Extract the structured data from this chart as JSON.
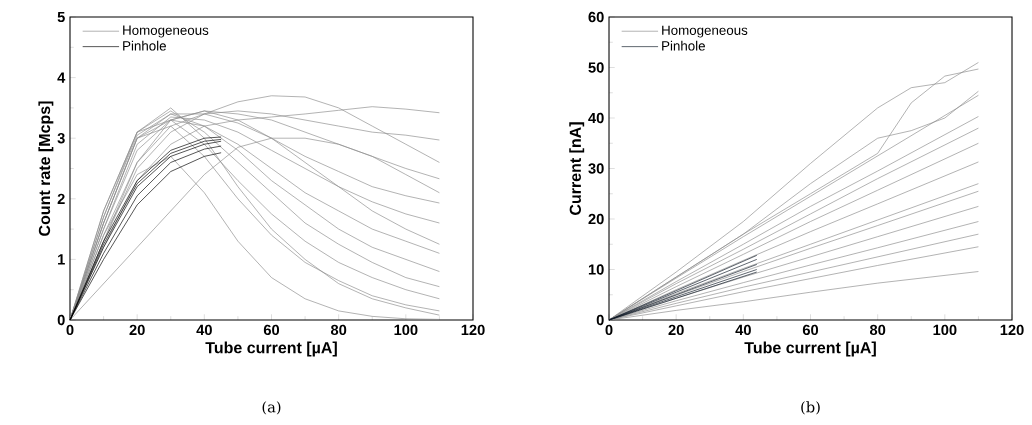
{
  "chart_data": [
    {
      "type": "line",
      "xlabel": "Tube current [µA]",
      "ylabel": "Count rate [Mcps]",
      "xlim": [
        0,
        120
      ],
      "ylim": [
        0,
        5
      ],
      "xticks": [
        0,
        20,
        40,
        60,
        80,
        100,
        120
      ],
      "yticks": [
        0,
        1,
        2,
        3,
        4,
        5
      ],
      "legend": "top left",
      "marker": "none",
      "line_style": "solid",
      "annotations": [
        "(a)"
      ],
      "series": [
        {
          "name": "Homogeneous",
          "color": "#8c8c8c",
          "x": [
            0,
            10,
            20,
            30,
            40,
            50,
            60,
            70,
            80,
            90,
            100,
            110
          ],
          "values": [
            0,
            1.2,
            2.3,
            2.9,
            3.2,
            3.3,
            3.35,
            3.4,
            3.46,
            3.52,
            3.48,
            3.42
          ]
        },
        {
          "color": "#8c8c8c",
          "x": [
            0,
            10,
            20,
            30,
            40,
            50,
            60,
            70,
            80,
            90,
            100,
            110
          ],
          "values": [
            0,
            1.4,
            2.6,
            3.2,
            3.4,
            3.45,
            3.4,
            3.3,
            3.2,
            3.1,
            3.05,
            2.97
          ]
        },
        {
          "color": "#8c8c8c",
          "x": [
            0,
            10,
            20,
            30,
            40,
            50,
            60,
            70,
            80,
            90,
            100,
            110
          ],
          "values": [
            0,
            1.3,
            2.5,
            3.1,
            3.4,
            3.6,
            3.7,
            3.68,
            3.5,
            3.2,
            2.9,
            2.6
          ]
        },
        {
          "color": "#8c8c8c",
          "x": [
            0,
            10,
            20,
            30,
            40,
            50,
            60,
            70,
            80,
            90,
            100,
            110
          ],
          "values": [
            0,
            1.5,
            2.8,
            3.3,
            3.45,
            3.4,
            3.3,
            3.1,
            2.9,
            2.7,
            2.5,
            2.33
          ]
        },
        {
          "color": "#8c8c8c",
          "x": [
            0,
            10,
            20,
            30,
            40,
            50,
            60,
            70,
            80,
            90,
            100,
            110
          ],
          "values": [
            0,
            1.6,
            3.0,
            3.4,
            3.4,
            3.25,
            3.0,
            2.7,
            2.45,
            2.2,
            2.05,
            1.93
          ]
        },
        {
          "color": "#8c8c8c",
          "x": [
            0,
            10,
            20,
            30,
            40,
            50,
            60,
            70,
            80,
            90,
            100,
            110
          ],
          "values": [
            0,
            1.5,
            2.9,
            3.35,
            3.3,
            3.1,
            2.8,
            2.5,
            2.2,
            1.95,
            1.75,
            1.6
          ]
        },
        {
          "color": "#8c8c8c",
          "x": [
            0,
            10,
            20,
            30,
            40,
            50,
            60,
            70,
            80,
            90,
            100,
            110
          ],
          "values": [
            0,
            1.6,
            3.0,
            3.3,
            3.2,
            2.9,
            2.5,
            2.1,
            1.8,
            1.5,
            1.3,
            1.1
          ]
        },
        {
          "color": "#8c8c8c",
          "x": [
            0,
            10,
            20,
            30,
            40,
            50,
            60,
            70,
            80,
            90,
            100,
            110
          ],
          "values": [
            0,
            1.7,
            3.05,
            3.4,
            3.2,
            2.8,
            2.3,
            1.9,
            1.5,
            1.2,
            1.0,
            0.8
          ]
        },
        {
          "color": "#8c8c8c",
          "x": [
            0,
            10,
            20,
            30,
            40,
            50,
            60,
            70,
            80,
            90,
            100,
            110
          ],
          "values": [
            0,
            1.7,
            3.1,
            3.45,
            3.1,
            2.6,
            2.1,
            1.6,
            1.25,
            0.95,
            0.7,
            0.55
          ]
        },
        {
          "color": "#8c8c8c",
          "x": [
            0,
            10,
            20,
            30,
            40,
            50,
            60,
            70,
            80,
            90,
            100,
            110
          ],
          "values": [
            0,
            1.8,
            3.1,
            3.3,
            2.9,
            2.3,
            1.75,
            1.3,
            0.95,
            0.7,
            0.5,
            0.35
          ]
        },
        {
          "color": "#8c8c8c",
          "x": [
            0,
            10,
            20,
            30,
            40,
            50,
            60,
            70,
            80,
            90,
            100,
            110
          ],
          "values": [
            0,
            1.6,
            3.0,
            3.2,
            2.7,
            2.0,
            1.4,
            0.95,
            0.65,
            0.4,
            0.25,
            0.15
          ]
        },
        {
          "color": "#8c8c8c",
          "x": [
            0,
            10,
            20,
            30,
            40,
            50,
            60,
            70,
            80,
            90,
            100,
            110
          ],
          "values": [
            0,
            1.8,
            3.1,
            3.5,
            3.0,
            2.2,
            1.5,
            1.0,
            0.6,
            0.35,
            0.2,
            0.08
          ]
        },
        {
          "color": "#8c8c8c",
          "x": [
            0,
            10,
            20,
            30,
            40,
            50,
            60,
            70,
            80,
            90,
            100,
            110
          ],
          "values": [
            0,
            1.4,
            2.4,
            2.7,
            2.1,
            1.3,
            0.7,
            0.35,
            0.15,
            0.06,
            0.02,
            0.01
          ]
        },
        {
          "color": "#8c8c8c",
          "x": [
            0,
            10,
            20,
            30,
            40,
            50,
            60,
            70,
            80,
            90,
            100,
            110
          ],
          "values": [
            0,
            0.6,
            1.2,
            1.8,
            2.4,
            2.85,
            3.0,
            3.0,
            2.9,
            2.7,
            2.4,
            2.1
          ]
        },
        {
          "color": "#8c8c8c",
          "x": [
            0,
            10,
            20,
            30,
            40,
            50,
            60,
            70,
            80,
            90,
            100,
            110
          ],
          "values": [
            0,
            1.3,
            2.6,
            3.3,
            3.45,
            3.3,
            3.0,
            2.6,
            2.2,
            1.8,
            1.5,
            1.25
          ]
        },
        {
          "name": "Pinhole",
          "color": "#000000",
          "x": [
            0,
            10,
            20,
            30,
            40,
            45
          ],
          "values": [
            0,
            1.3,
            2.3,
            2.8,
            3.0,
            3.02
          ]
        },
        {
          "color": "#000000",
          "x": [
            0,
            10,
            20,
            30,
            40,
            45
          ],
          "values": [
            0,
            1.2,
            2.2,
            2.7,
            2.9,
            2.95
          ]
        },
        {
          "color": "#000000",
          "x": [
            0,
            10,
            20,
            30,
            40,
            45
          ],
          "values": [
            0,
            1.1,
            2.05,
            2.6,
            2.82,
            2.87
          ]
        },
        {
          "color": "#000000",
          "x": [
            0,
            10,
            20,
            30,
            40,
            45
          ],
          "values": [
            0,
            1.0,
            1.9,
            2.45,
            2.7,
            2.76
          ]
        },
        {
          "color": "#000000",
          "x": [
            0,
            10,
            20,
            30,
            40,
            45
          ],
          "values": [
            0,
            1.25,
            2.25,
            2.75,
            2.95,
            2.98
          ]
        }
      ]
    },
    {
      "type": "line",
      "xlabel": "Tube current [µA]",
      "ylabel": "Current [nA]",
      "xlim": [
        0,
        120
      ],
      "ylim": [
        0,
        60
      ],
      "xticks": [
        0,
        20,
        40,
        60,
        80,
        100,
        120
      ],
      "yticks": [
        0,
        10,
        20,
        30,
        40,
        50,
        60
      ],
      "legend": "top left",
      "marker": "none",
      "line_style": "solid",
      "annotations": [
        "(b)"
      ],
      "series": [
        {
          "name": "Homogeneous",
          "color": "#8c8c8c",
          "x": [
            0,
            20,
            40,
            60,
            80,
            90,
            100,
            110
          ],
          "values": [
            0,
            9.5,
            19.5,
            31,
            42,
            46,
            47,
            51
          ]
        },
        {
          "color": "#8c8c8c",
          "x": [
            0,
            20,
            40,
            60,
            80,
            90,
            100,
            110
          ],
          "values": [
            0,
            8.5,
            17,
            25,
            33,
            43,
            48.3,
            49.7
          ]
        },
        {
          "color": "#8c8c8c",
          "x": [
            0,
            20,
            40,
            60,
            80,
            90,
            100,
            110
          ],
          "values": [
            0,
            8.5,
            17,
            27,
            36,
            37.5,
            40,
            45.3
          ]
        },
        {
          "color": "#8c8c8c",
          "x": [
            0,
            20,
            40,
            60,
            80,
            110
          ],
          "values": [
            0,
            8.3,
            16.5,
            24.5,
            32.5,
            44.5
          ]
        },
        {
          "color": "#8c8c8c",
          "x": [
            0,
            20,
            40,
            60,
            80,
            110
          ],
          "values": [
            0,
            7.6,
            15,
            22.5,
            29.5,
            40.3
          ]
        },
        {
          "color": "#8c8c8c",
          "x": [
            0,
            20,
            40,
            60,
            80,
            110
          ],
          "values": [
            0,
            7.2,
            14,
            21,
            28,
            38
          ]
        },
        {
          "color": "#8c8c8c",
          "x": [
            0,
            20,
            40,
            60,
            80,
            110
          ],
          "values": [
            0,
            6.6,
            13,
            19.5,
            25.7,
            35
          ]
        },
        {
          "color": "#8c8c8c",
          "x": [
            0,
            20,
            40,
            60,
            80,
            110
          ],
          "values": [
            0,
            6,
            11.8,
            17.5,
            23,
            31.3
          ]
        },
        {
          "color": "#8c8c8c",
          "x": [
            0,
            20,
            40,
            60,
            80,
            110
          ],
          "values": [
            0,
            5.2,
            10.2,
            15,
            19.8,
            27
          ]
        },
        {
          "color": "#8c8c8c",
          "x": [
            0,
            20,
            40,
            60,
            80,
            110
          ],
          "values": [
            0,
            4.9,
            9.6,
            14.2,
            18.7,
            25.5
          ]
        },
        {
          "color": "#8c8c8c",
          "x": [
            0,
            20,
            40,
            60,
            80,
            110
          ],
          "values": [
            0,
            4.3,
            8.5,
            12.5,
            16.5,
            22.5
          ]
        },
        {
          "color": "#8c8c8c",
          "x": [
            0,
            20,
            40,
            60,
            80,
            110
          ],
          "values": [
            0,
            3.8,
            7.4,
            10.9,
            14.3,
            19.5
          ]
        },
        {
          "color": "#8c8c8c",
          "x": [
            0,
            20,
            40,
            60,
            80,
            110
          ],
          "values": [
            0,
            3.3,
            6.5,
            9.5,
            12.5,
            17
          ]
        },
        {
          "color": "#8c8c8c",
          "x": [
            0,
            20,
            40,
            60,
            80,
            110
          ],
          "values": [
            0,
            2.8,
            5.6,
            8.2,
            10.8,
            14.5
          ]
        },
        {
          "color": "#8c8c8c",
          "x": [
            0,
            20,
            40,
            60,
            80,
            110
          ],
          "values": [
            0,
            1.9,
            3.6,
            5.5,
            7.3,
            9.6
          ]
        },
        {
          "name": "Pinhole",
          "color": "#0d1826",
          "x": [
            0,
            20,
            44
          ],
          "values": [
            0,
            5.8,
            12.8
          ]
        },
        {
          "color": "#0d1826",
          "x": [
            0,
            20,
            44
          ],
          "values": [
            0,
            5.5,
            12
          ]
        },
        {
          "color": "#0d1826",
          "x": [
            0,
            20,
            44
          ],
          "values": [
            0,
            5.0,
            11
          ]
        },
        {
          "color": "#0d1826",
          "x": [
            0,
            20,
            44
          ],
          "values": [
            0,
            4.6,
            10
          ]
        },
        {
          "color": "#0d1826",
          "x": [
            0,
            20,
            44
          ],
          "values": [
            0,
            4.3,
            9.5
          ]
        }
      ]
    }
  ]
}
